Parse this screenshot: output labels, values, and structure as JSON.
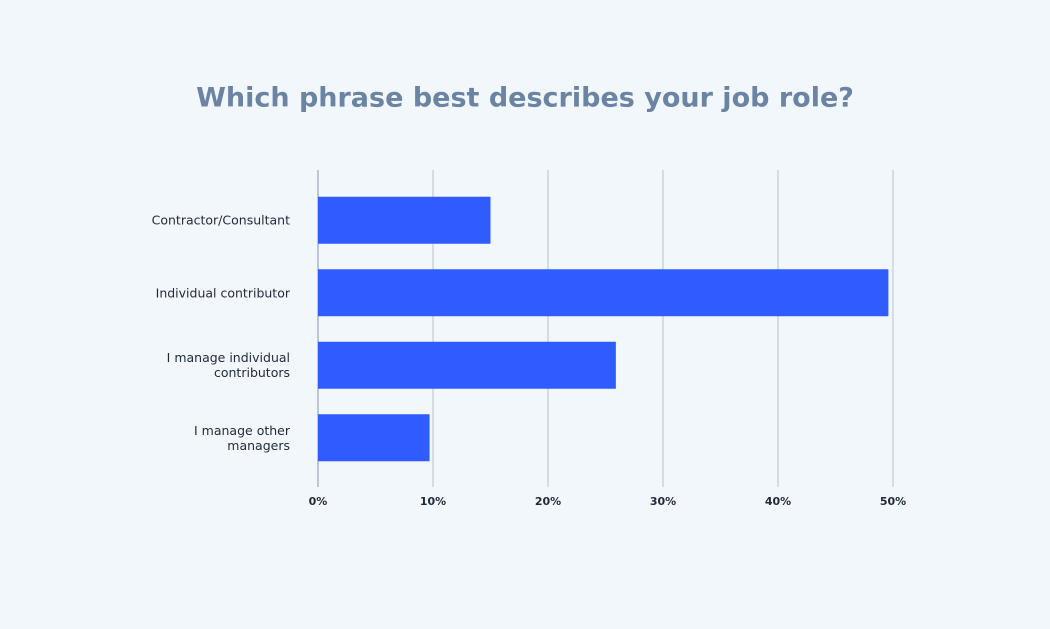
{
  "chart_data": {
    "type": "hbar",
    "title": "Which phrase best describes your job role?",
    "categories": [
      "Contractor/Consultant",
      "Individual contributor",
      "I manage individual contributors",
      "I manage other managers"
    ],
    "values": [
      15,
      49.6,
      25.9,
      9.7
    ],
    "color": "#2f5bff",
    "xlim": [
      0,
      50
    ],
    "xticks": [
      {
        "value": 0,
        "label": "0%"
      },
      {
        "value": 10,
        "label": "10%"
      },
      {
        "value": 20,
        "label": "20%"
      },
      {
        "value": 30,
        "label": "30%"
      },
      {
        "value": 40,
        "label": "40%"
      },
      {
        "value": 50,
        "label": "50%"
      }
    ],
    "grid": true
  }
}
